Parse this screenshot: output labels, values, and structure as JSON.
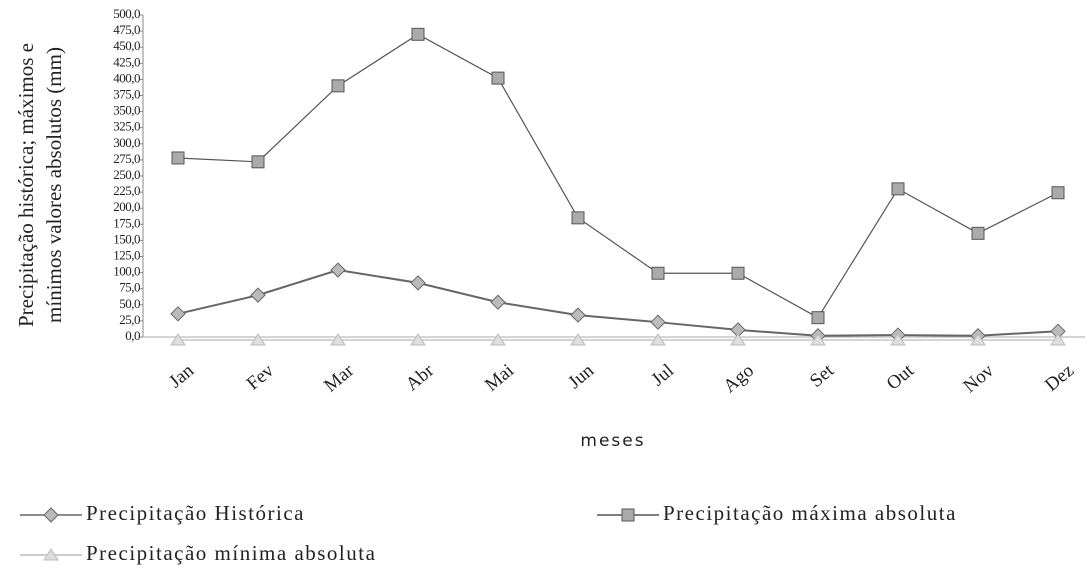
{
  "chart_data": {
    "type": "line",
    "y_label": [
      "Precipitação histórica; máximos e",
      "mínimos valores absolutos (mm)"
    ],
    "x_label": "meses",
    "categories": [
      "Jan",
      "Fev",
      "Mar",
      "Abr",
      "Mai",
      "Jun",
      "Jul",
      "Ago",
      "Set",
      "Out",
      "Nov",
      "Dez"
    ],
    "series": [
      {
        "name": "Precipitação Histórica",
        "color": "#666666",
        "marker": "diamond",
        "values": [
          36,
          65,
          104,
          84,
          54,
          34,
          23,
          11,
          2,
          3,
          2,
          9
        ]
      },
      {
        "name": "Precipitação máxima absoluta",
        "color": "#555555",
        "marker": "square",
        "values": [
          278,
          272,
          390,
          470,
          402,
          185,
          99,
          99,
          30,
          230,
          161,
          224
        ]
      },
      {
        "name": "Precipitação mínima absoluta",
        "color": "#bbbbbb",
        "marker": "triangle",
        "values": [
          0,
          0,
          0,
          0,
          0,
          0,
          0,
          0,
          0,
          0,
          0,
          0
        ]
      }
    ],
    "ylim": [
      0,
      500
    ],
    "yticks": [
      {
        "value": 0,
        "label": "0,0"
      },
      {
        "value": 25,
        "label": "25,0"
      },
      {
        "value": 50,
        "label": "50,0"
      },
      {
        "value": 75,
        "label": "75,0"
      },
      {
        "value": 100,
        "label": "100,0"
      },
      {
        "value": 125,
        "label": "125,0"
      },
      {
        "value": 150,
        "label": "150,0"
      },
      {
        "value": 175,
        "label": "175,0"
      },
      {
        "value": 200,
        "label": "200,0"
      },
      {
        "value": 225,
        "label": "225,0"
      },
      {
        "value": 250,
        "label": "250,0"
      },
      {
        "value": 275,
        "label": "275,0"
      },
      {
        "value": 300,
        "label": "300,0"
      },
      {
        "value": 325,
        "label": "325,0"
      },
      {
        "value": 350,
        "label": "350,0"
      },
      {
        "value": 375,
        "label": "375,0"
      },
      {
        "value": 400,
        "label": "400,0"
      },
      {
        "value": 425,
        "label": "425,0"
      },
      {
        "value": 450,
        "label": "450,0"
      },
      {
        "value": 475,
        "label": "475,0"
      },
      {
        "value": 500,
        "label": "500,0"
      }
    ]
  }
}
